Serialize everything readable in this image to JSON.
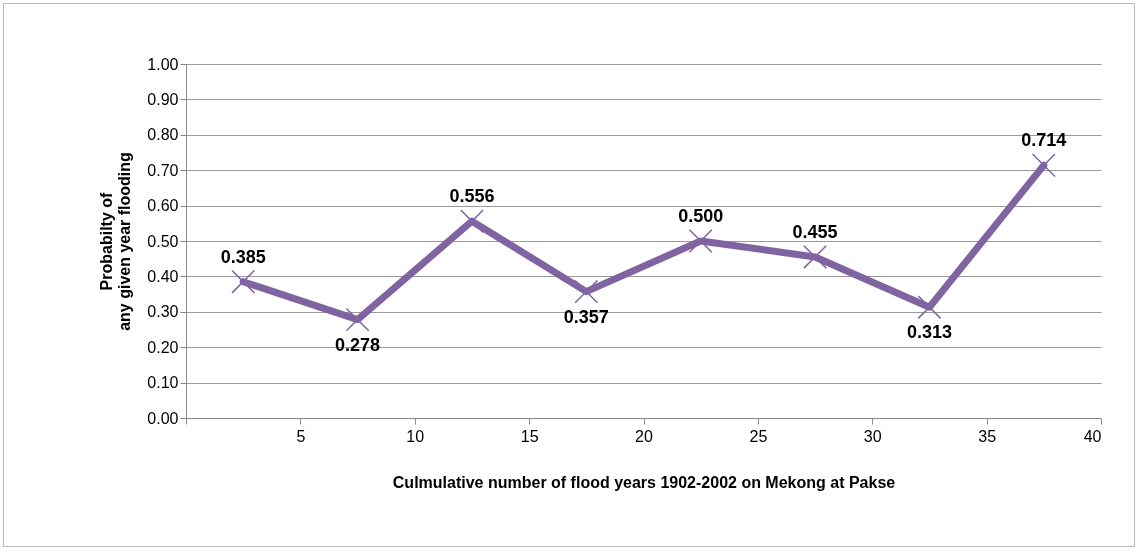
{
  "chart_data": {
    "type": "line",
    "xlabel": "Culmulative number of flood years 1902-2002 on Mekong at Pakse",
    "ylabel": "Probabilty of\nany given year flooding",
    "x": [
      2.5,
      7.5,
      12.5,
      17.5,
      22.5,
      27.5,
      32.5,
      37.5
    ],
    "series": [
      {
        "color": "#8064a2",
        "values": [
          0.385,
          0.278,
          0.556,
          0.357,
          0.5,
          0.455,
          0.313,
          0.714
        ]
      }
    ],
    "xlim": [
      0,
      40
    ],
    "xticks": [
      {
        "value": 0,
        "label": null
      },
      5,
      10,
      15,
      20,
      25,
      30,
      35,
      40
    ],
    "ylim": [
      0,
      1
    ],
    "yticks": [
      {
        "value": 0,
        "label": "0.00"
      },
      {
        "value": 0.1,
        "label": "0.10"
      },
      {
        "value": 0.2,
        "label": "0.20"
      },
      {
        "value": 0.3,
        "label": "0.30"
      },
      {
        "value": 0.4,
        "label": "0.40"
      },
      {
        "value": 0.5,
        "label": "0.50"
      },
      {
        "value": 0.6,
        "label": "0.60"
      },
      {
        "value": 0.7,
        "label": "0.70"
      },
      {
        "value": 0.8,
        "label": "0.80"
      },
      {
        "value": 0.9,
        "label": "0.90"
      },
      {
        "value": 1,
        "label": "1.00"
      }
    ],
    "grid": "y",
    "legend": false,
    "marker": "cross",
    "line_style": "solid",
    "value_labels": [
      "0.385",
      "0.278",
      "0.556",
      "0.357",
      "0.500",
      "0.455",
      "0.313",
      "0.714"
    ]
  }
}
